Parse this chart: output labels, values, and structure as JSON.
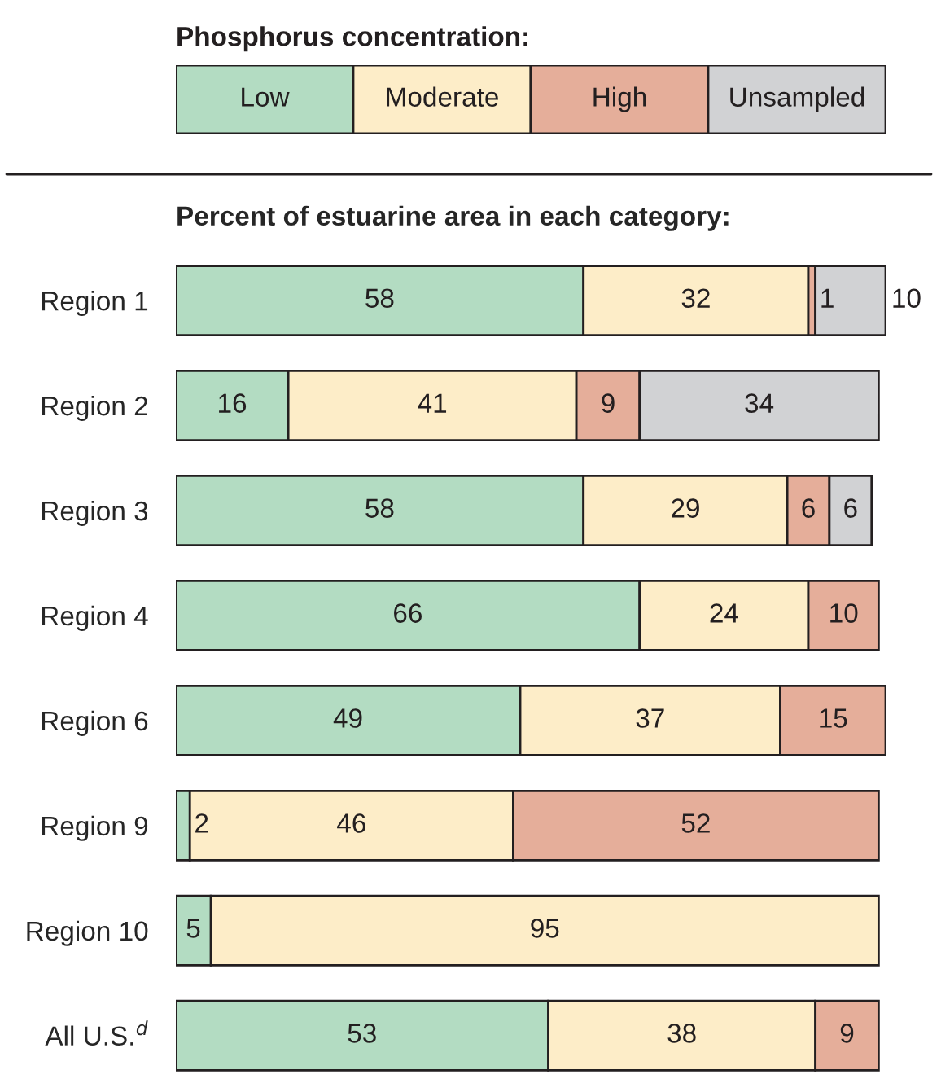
{
  "chart_data": {
    "type": "bar",
    "orientation": "horizontal",
    "stacked": true,
    "data_labels": true,
    "title": "Percent of estuarine area in each category:",
    "legend_title": "Phosphorus concentration:",
    "legend": "top",
    "categories": [
      "Region 1",
      "Region 2",
      "Region 3",
      "Region 4",
      "Region 6",
      "Region 9",
      "Region 10",
      "All U.S.$^{d}$"
    ],
    "series": [
      {
        "name": "Low",
        "color": "#b3dcc2",
        "values": [
          58,
          16,
          58,
          66,
          49,
          2,
          5,
          53
        ]
      },
      {
        "name": "Moderate",
        "color": "#fdedc8",
        "values": [
          32,
          41,
          29,
          24,
          37,
          46,
          95,
          38
        ]
      },
      {
        "name": "High",
        "color": "#e5ae9a",
        "values": [
          1,
          9,
          6,
          10,
          15,
          52,
          null,
          9
        ]
      },
      {
        "name": "Unsampled",
        "color": "#d1d2d4",
        "values": [
          10,
          34,
          6,
          null,
          null,
          null,
          null,
          null
        ]
      }
    ]
  }
}
